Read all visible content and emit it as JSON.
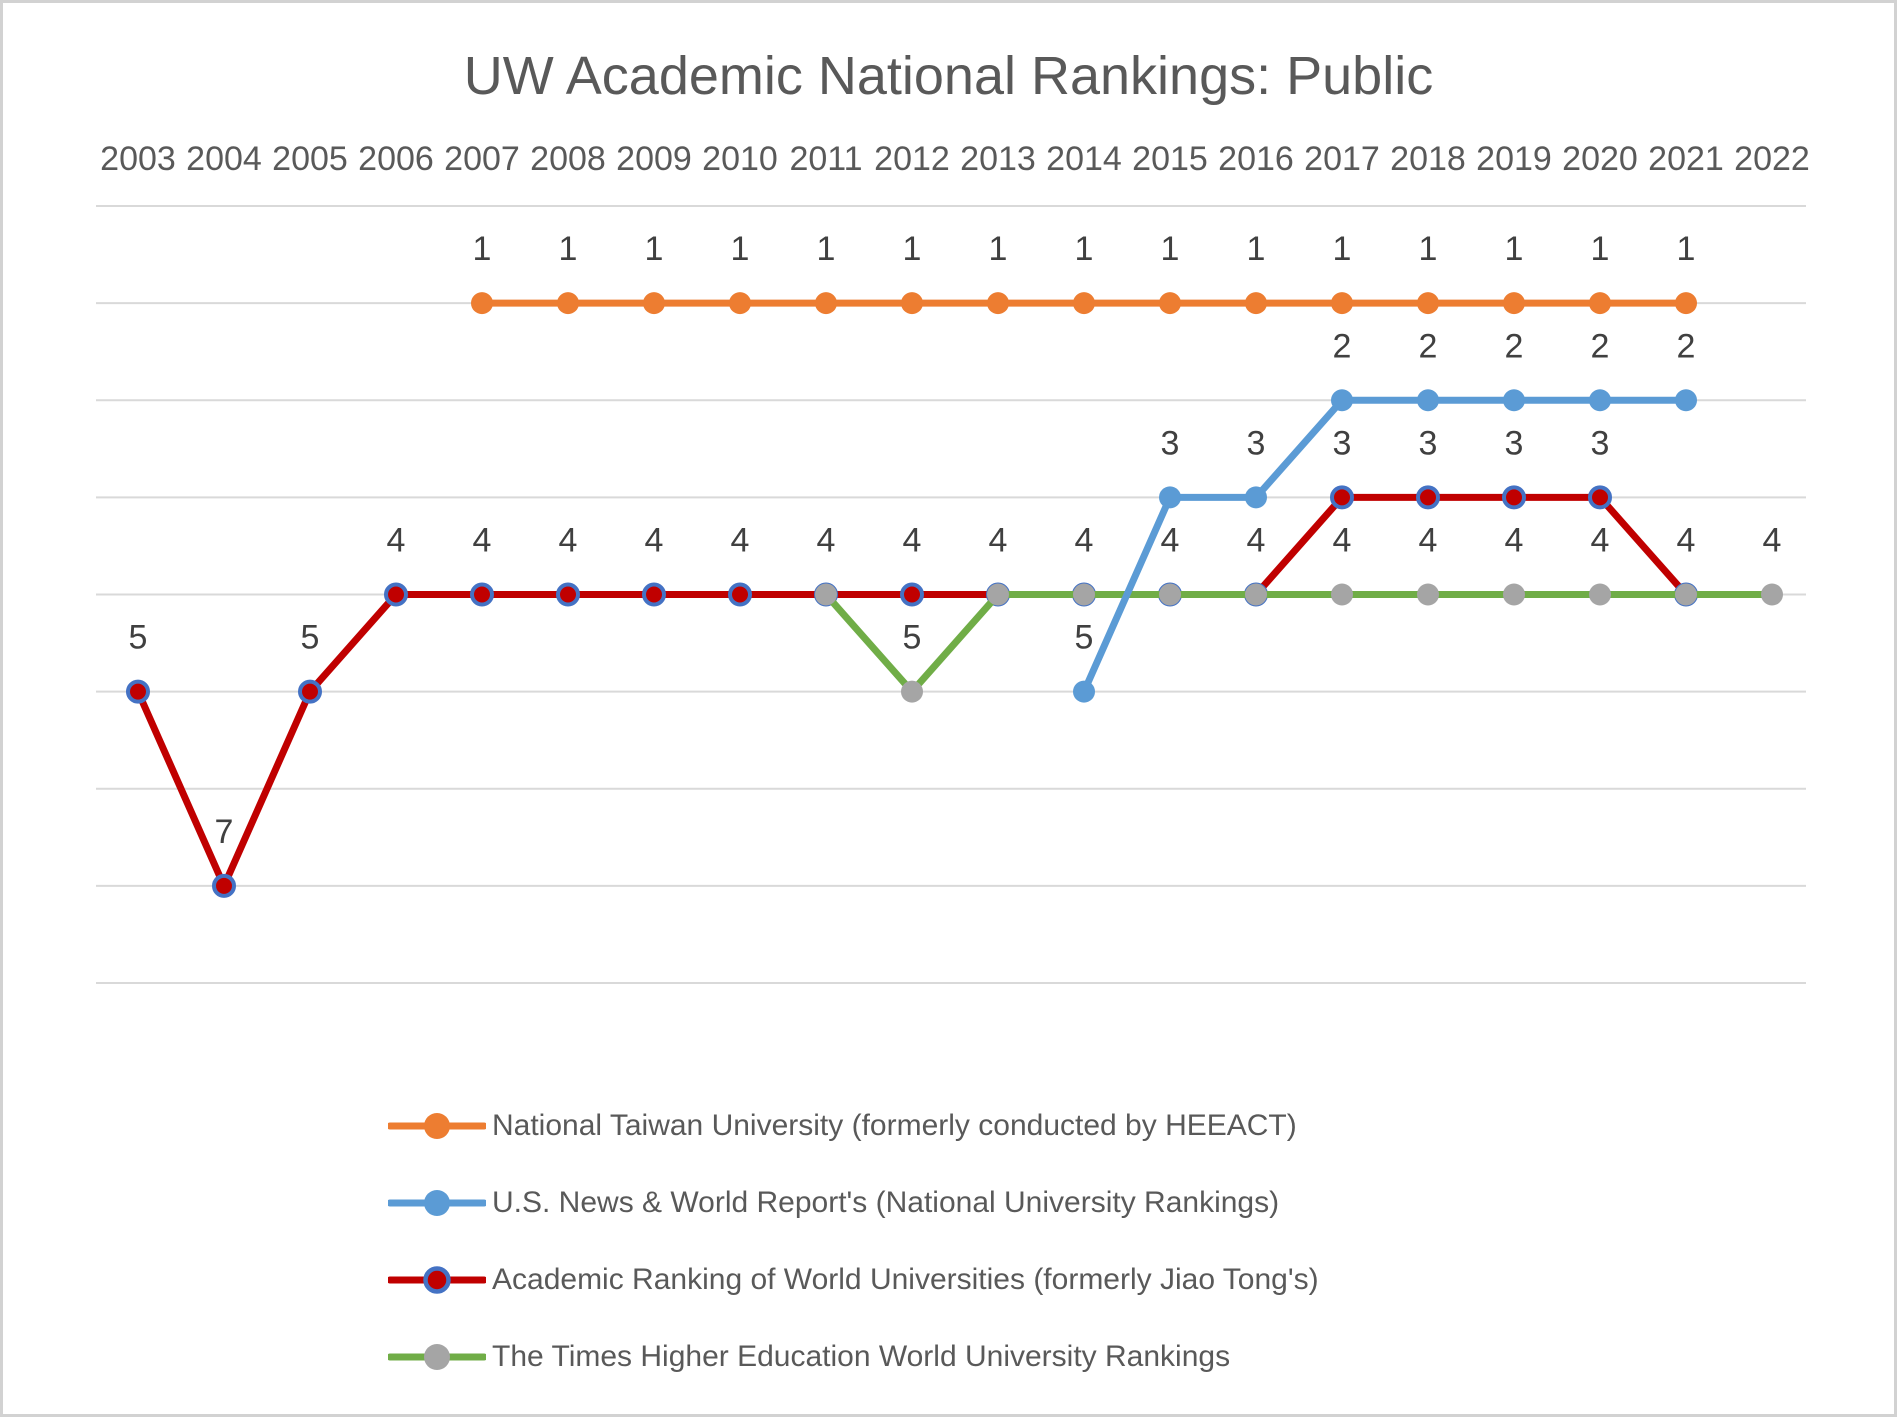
{
  "chart_data": {
    "type": "line",
    "title": "UW Academic National Rankings: Public",
    "x_categories": [
      2003,
      2004,
      2005,
      2006,
      2007,
      2008,
      2009,
      2010,
      2011,
      2012,
      2013,
      2014,
      2015,
      2016,
      2017,
      2018,
      2019,
      2020,
      2021,
      2022
    ],
    "y_axis": {
      "inverted": true,
      "min": 0,
      "max": 8,
      "tick_step": 1,
      "labels_visible": false,
      "gridlines": true
    },
    "x_axis": {
      "labels_position": "top"
    },
    "data_labels": {
      "visible": true,
      "position": "above"
    },
    "legend_position": "bottom-left",
    "series": [
      {
        "id": "ntu",
        "name": "National Taiwan University (formerly conducted by HEEACT)",
        "line_color": "#ED7D31",
        "marker_fill": "#ED7D31",
        "marker_stroke": null,
        "z": 4,
        "points": [
          [
            2007,
            1
          ],
          [
            2008,
            1
          ],
          [
            2009,
            1
          ],
          [
            2010,
            1
          ],
          [
            2011,
            1
          ],
          [
            2012,
            1
          ],
          [
            2013,
            1
          ],
          [
            2014,
            1
          ],
          [
            2015,
            1
          ],
          [
            2016,
            1
          ],
          [
            2017,
            1
          ],
          [
            2018,
            1
          ],
          [
            2019,
            1
          ],
          [
            2020,
            1
          ],
          [
            2021,
            1
          ]
        ]
      },
      {
        "id": "usnews",
        "name": "U.S. News & World Report's (National University Rankings)",
        "line_color": "#5B9BD5",
        "marker_fill": "#5B9BD5",
        "marker_stroke": null,
        "z": 3,
        "points": [
          [
            2014,
            5
          ],
          [
            2015,
            3
          ],
          [
            2016,
            3
          ],
          [
            2017,
            2
          ],
          [
            2018,
            2
          ],
          [
            2019,
            2
          ],
          [
            2020,
            2
          ],
          [
            2021,
            2
          ]
        ]
      },
      {
        "id": "arwu",
        "name": "Academic Ranking of World Universities (formerly Jiao Tong's)",
        "line_color": "#C00000",
        "marker_fill": "#C00000",
        "marker_stroke": "#4472C4",
        "z": 1,
        "points": [
          [
            2003,
            5
          ],
          [
            2004,
            7
          ],
          [
            2005,
            5
          ],
          [
            2006,
            4
          ],
          [
            2007,
            4
          ],
          [
            2008,
            4
          ],
          [
            2009,
            4
          ],
          [
            2010,
            4
          ],
          [
            2011,
            4
          ],
          [
            2012,
            4
          ],
          [
            2013,
            4
          ],
          [
            2014,
            4
          ],
          [
            2015,
            4
          ],
          [
            2016,
            4
          ],
          [
            2017,
            3
          ],
          [
            2018,
            3
          ],
          [
            2019,
            3
          ],
          [
            2020,
            3
          ],
          [
            2021,
            4
          ]
        ]
      },
      {
        "id": "the",
        "name": "The Times Higher Education World University Rankings",
        "line_color": "#70AD47",
        "marker_fill": "#A5A5A5",
        "marker_stroke": null,
        "z": 2,
        "points": [
          [
            2011,
            4
          ],
          [
            2012,
            5
          ],
          [
            2013,
            4
          ],
          [
            2014,
            4
          ],
          [
            2015,
            4
          ],
          [
            2016,
            4
          ],
          [
            2017,
            4
          ],
          [
            2018,
            4
          ],
          [
            2019,
            4
          ],
          [
            2020,
            4
          ],
          [
            2021,
            4
          ],
          [
            2022,
            4
          ]
        ]
      }
    ],
    "colors": {
      "background": "#FFFFFF",
      "border": "#D2D2D2",
      "gridline": "#D9D9D9",
      "axis_text": "#595959",
      "data_label_text": "#404040",
      "title_text": "#595959",
      "legend_text": "#595959"
    }
  }
}
